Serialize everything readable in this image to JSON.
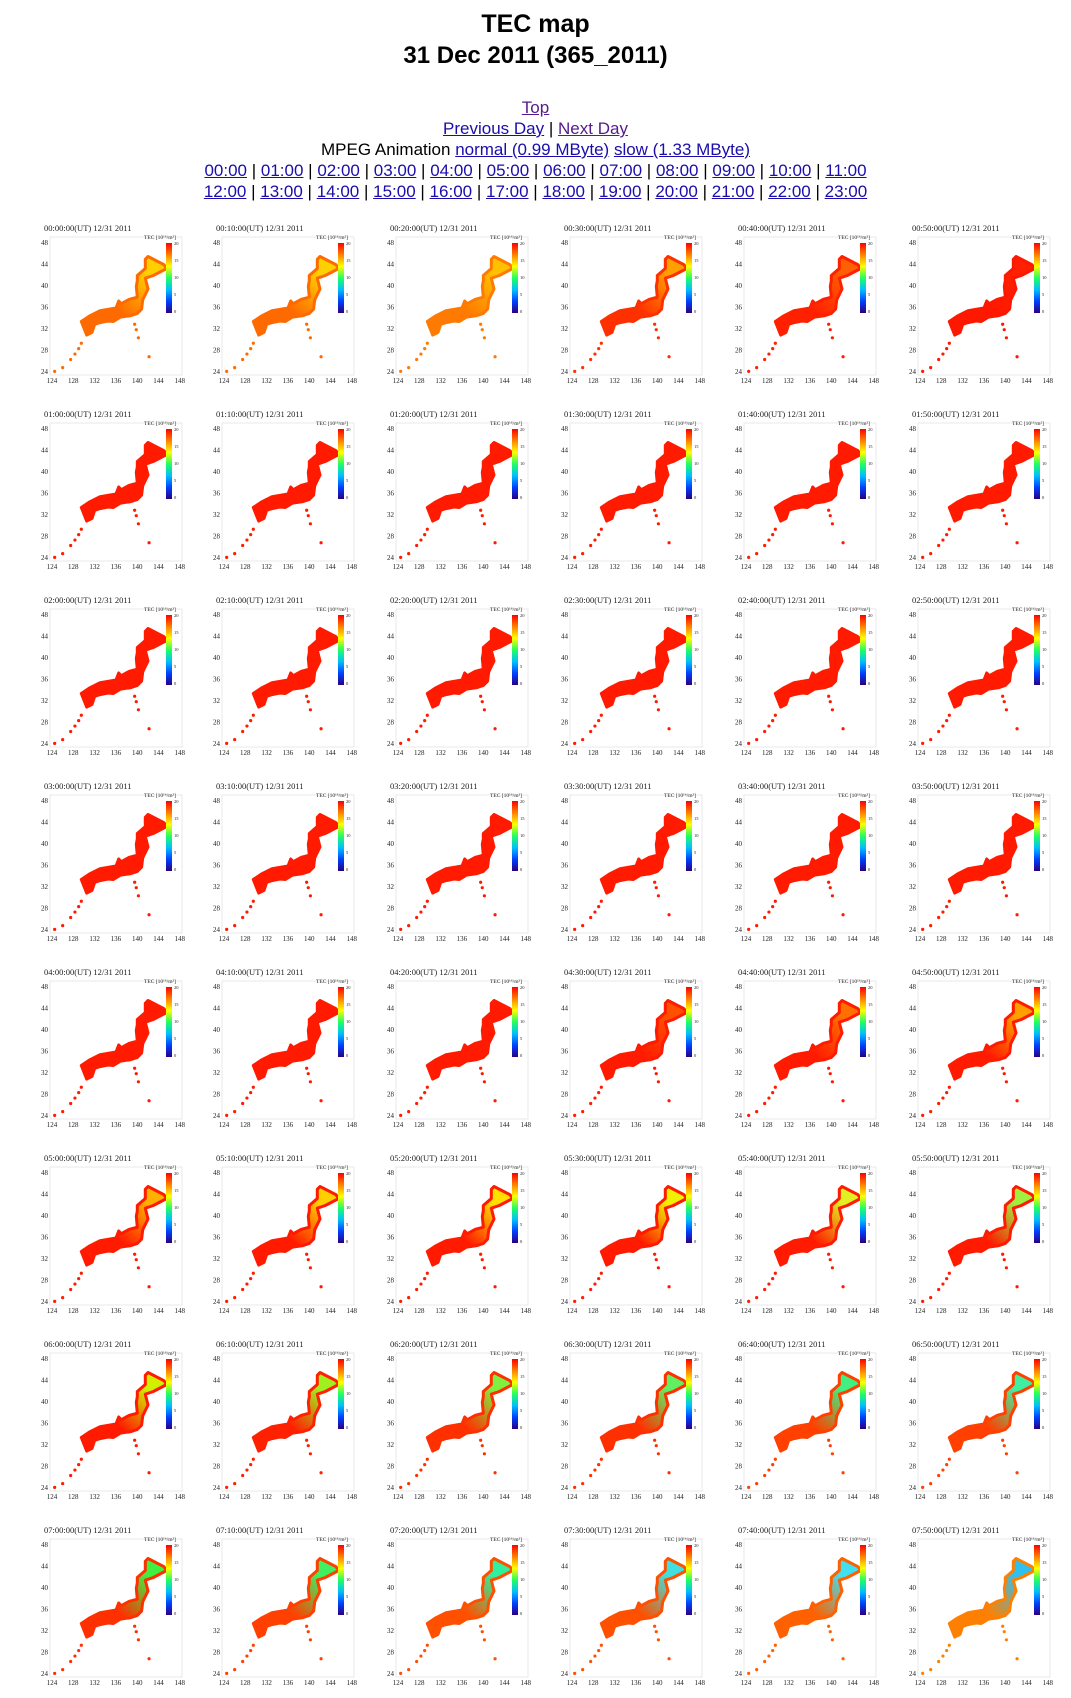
{
  "header": {
    "title": "TEC map",
    "subtitle": "31 Dec 2011 (365_2011)"
  },
  "nav": {
    "top": "Top",
    "previous_day": "Previous Day",
    "next_day": "Next Day",
    "separator": "|",
    "mpeg_label": "MPEG Animation",
    "normal": "normal (0.99 MByte)",
    "slow": "slow (1.33 MByte)",
    "hours": [
      "00:00",
      "01:00",
      "02:00",
      "03:00",
      "04:00",
      "05:00",
      "06:00",
      "07:00",
      "08:00",
      "09:00",
      "10:00",
      "11:00",
      "12:00",
      "13:00",
      "14:00",
      "15:00",
      "16:00",
      "17:00",
      "18:00",
      "19:00",
      "20:00",
      "21:00",
      "22:00",
      "23:00"
    ]
  },
  "map_axes": {
    "lat_ticks": [
      "48",
      "44",
      "40",
      "36",
      "32",
      "28",
      "24"
    ],
    "lon_ticks": [
      "124",
      "128",
      "132",
      "136",
      "140",
      "144",
      "148"
    ],
    "colorbar_title": "TEC [10¹⁶/m²]",
    "colorbar_ticks": [
      "20",
      "15",
      "10",
      "5",
      "0"
    ]
  },
  "frames": [
    {
      "caption": "00:00:00(UT)  12/31 2011",
      "colors": [
        "#ff6a00",
        "#ffd000"
      ]
    },
    {
      "caption": "00:10:00(UT)  12/31 2011",
      "colors": [
        "#ff6a00",
        "#ffd000"
      ]
    },
    {
      "caption": "00:20:00(UT)  12/31 2011",
      "colors": [
        "#ff7a00",
        "#ffc000"
      ]
    },
    {
      "caption": "00:30:00(UT)  12/31 2011",
      "colors": [
        "#ff3000",
        "#ffa000"
      ]
    },
    {
      "caption": "00:40:00(UT)  12/31 2011",
      "colors": [
        "#ff2000",
        "#ff6000"
      ]
    },
    {
      "caption": "00:50:00(UT)  12/31 2011",
      "colors": [
        "#ff1800",
        "#ff2000"
      ]
    },
    {
      "caption": "01:00:00(UT)  12/31 2011",
      "colors": [
        "#ff1a00",
        "#ff1a00"
      ]
    },
    {
      "caption": "01:10:00(UT)  12/31 2011",
      "colors": [
        "#ff1a00",
        "#ff1a00"
      ]
    },
    {
      "caption": "01:20:00(UT)  12/31 2011",
      "colors": [
        "#ff1a00",
        "#ff1a00"
      ]
    },
    {
      "caption": "01:30:00(UT)  12/31 2011",
      "colors": [
        "#ff1a00",
        "#ff1a00"
      ]
    },
    {
      "caption": "01:40:00(UT)  12/31 2011",
      "colors": [
        "#ff1a00",
        "#ff1a00"
      ]
    },
    {
      "caption": "01:50:00(UT)  12/31 2011",
      "colors": [
        "#ff1a00",
        "#ff1a00"
      ]
    },
    {
      "caption": "02:00:00(UT)  12/31 2011",
      "colors": [
        "#ff1a00",
        "#ff1a00"
      ]
    },
    {
      "caption": "02:10:00(UT)  12/31 2011",
      "colors": [
        "#ff1a00",
        "#ff1a00"
      ]
    },
    {
      "caption": "02:20:00(UT)  12/31 2011",
      "colors": [
        "#ff1a00",
        "#ff1a00"
      ]
    },
    {
      "caption": "02:30:00(UT)  12/31 2011",
      "colors": [
        "#ff1a00",
        "#ff1a00"
      ]
    },
    {
      "caption": "02:40:00(UT)  12/31 2011",
      "colors": [
        "#ff1a00",
        "#ff1a00"
      ]
    },
    {
      "caption": "02:50:00(UT)  12/31 2011",
      "colors": [
        "#ff1a00",
        "#ff1a00"
      ]
    },
    {
      "caption": "03:00:00(UT)  12/31 2011",
      "colors": [
        "#ff1a00",
        "#ff1a00"
      ]
    },
    {
      "caption": "03:10:00(UT)  12/31 2011",
      "colors": [
        "#ff1a00",
        "#ff1a00"
      ]
    },
    {
      "caption": "03:20:00(UT)  12/31 2011",
      "colors": [
        "#ff1a00",
        "#ff1a00"
      ]
    },
    {
      "caption": "03:30:00(UT)  12/31 2011",
      "colors": [
        "#ff1a00",
        "#ff1a00"
      ]
    },
    {
      "caption": "03:40:00(UT)  12/31 2011",
      "colors": [
        "#ff1a00",
        "#ff1a00"
      ]
    },
    {
      "caption": "03:50:00(UT)  12/31 2011",
      "colors": [
        "#ff1a00",
        "#ff1a00"
      ]
    },
    {
      "caption": "04:00:00(UT)  12/31 2011",
      "colors": [
        "#ff1a00",
        "#ff1a00"
      ]
    },
    {
      "caption": "04:10:00(UT)  12/31 2011",
      "colors": [
        "#ff1a00",
        "#ff1a00"
      ]
    },
    {
      "caption": "04:20:00(UT)  12/31 2011",
      "colors": [
        "#ff1a00",
        "#ff1a00"
      ]
    },
    {
      "caption": "04:30:00(UT)  12/31 2011",
      "colors": [
        "#ff1a00",
        "#ff5000"
      ]
    },
    {
      "caption": "04:40:00(UT)  12/31 2011",
      "colors": [
        "#ff1a00",
        "#ff7000"
      ]
    },
    {
      "caption": "04:50:00(UT)  12/31 2011",
      "colors": [
        "#ff1a00",
        "#ffa000"
      ]
    },
    {
      "caption": "05:00:00(UT)  12/31 2011",
      "colors": [
        "#ff1a00",
        "#ffb000"
      ]
    },
    {
      "caption": "05:10:00(UT)  12/31 2011",
      "colors": [
        "#ff1a00",
        "#ffd000"
      ]
    },
    {
      "caption": "05:20:00(UT)  12/31 2011",
      "colors": [
        "#ff1a00",
        "#ffe000"
      ]
    },
    {
      "caption": "05:30:00(UT)  12/31 2011",
      "colors": [
        "#ff1a00",
        "#f0f000"
      ]
    },
    {
      "caption": "05:40:00(UT)  12/31 2011",
      "colors": [
        "#ff1a00",
        "#e0f020"
      ]
    },
    {
      "caption": "05:50:00(UT)  12/31 2011",
      "colors": [
        "#ff1a00",
        "#a0f040"
      ]
    },
    {
      "caption": "06:00:00(UT)  12/31 2011",
      "colors": [
        "#ff1a00",
        "#d0f000"
      ]
    },
    {
      "caption": "06:10:00(UT)  12/31 2011",
      "colors": [
        "#ff2000",
        "#a0f020"
      ]
    },
    {
      "caption": "06:20:00(UT)  12/31 2011",
      "colors": [
        "#ff3000",
        "#80f040"
      ]
    },
    {
      "caption": "06:30:00(UT)  12/31 2011",
      "colors": [
        "#ff3000",
        "#60f060"
      ]
    },
    {
      "caption": "06:40:00(UT)  12/31 2011",
      "colors": [
        "#ff4000",
        "#40f080"
      ]
    },
    {
      "caption": "06:50:00(UT)  12/31 2011",
      "colors": [
        "#ff4000",
        "#40f0a0"
      ]
    },
    {
      "caption": "07:00:00(UT)  12/31 2011",
      "colors": [
        "#ff3000",
        "#40f040"
      ]
    },
    {
      "caption": "07:10:00(UT)  12/31 2011",
      "colors": [
        "#ff4000",
        "#40f060"
      ]
    },
    {
      "caption": "07:20:00(UT)  12/31 2011",
      "colors": [
        "#ff5000",
        "#30f0a0"
      ]
    },
    {
      "caption": "07:30:00(UT)  12/31 2011",
      "colors": [
        "#ff5000",
        "#40e0e0"
      ]
    },
    {
      "caption": "07:40:00(UT)  12/31 2011",
      "colors": [
        "#ff6000",
        "#40e0f0"
      ]
    },
    {
      "caption": "07:50:00(UT)  12/31 2011",
      "colors": [
        "#ff8000",
        "#30c0f0"
      ]
    }
  ]
}
